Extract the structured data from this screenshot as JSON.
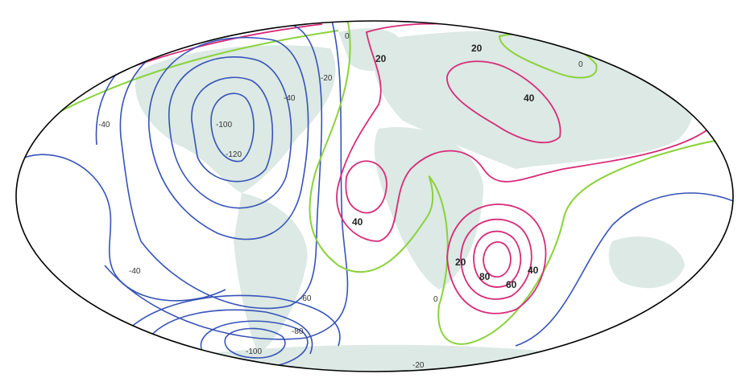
{
  "map": {
    "projection": "Hammer/Mollweide world",
    "colors": {
      "negative": "#3653b8",
      "zero": "#8ad23a",
      "positive": "#d72b78",
      "land": "#dce9e4",
      "outline": "#000000"
    },
    "labels": {
      "zero_top": "0",
      "neg_20_top": "-20",
      "neg_40_top": "-40",
      "neg_100_inner": "-100",
      "neg_120_center": "-120",
      "neg_40_left": "-40",
      "neg_40_lower": "-40",
      "neg_60_lower": "-60",
      "neg_80_bottom": "-80",
      "neg_100_bottom": "-100",
      "neg_20_bottom": "-20",
      "pos_20_top": "20",
      "pos_20_mid": "20",
      "pos_40_right": "40",
      "pos_40_center": "40",
      "zero_right": "0",
      "pos_20_lower": "20",
      "pos_60_lower": "60",
      "pos_40_lower": "40",
      "pos_80_lower": "80",
      "zero_bottom": "0"
    }
  }
}
